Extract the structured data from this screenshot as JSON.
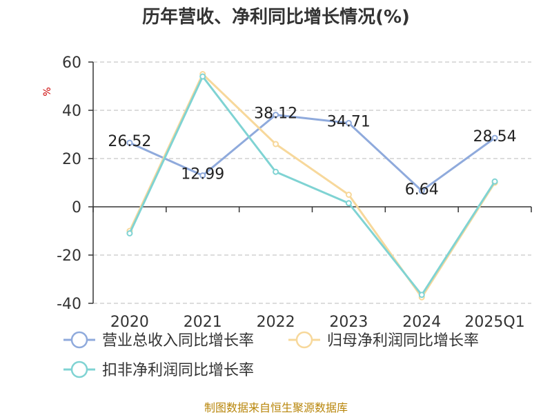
{
  "title": "历年营收、净利同比增长情况(%)",
  "footer": "制图数据来自恒生聚源数据库",
  "chart_data": {
    "type": "line",
    "title": "历年营收、净利同比增长情况(%)",
    "ylabel": "%",
    "xlabel": "",
    "ylim": [
      -40,
      60
    ],
    "yticks": [
      60,
      40,
      20,
      0,
      -20,
      -40
    ],
    "categories": [
      "2020",
      "2021",
      "2022",
      "2023",
      "2024",
      "2025Q1"
    ],
    "grid": true,
    "legend": "bottom-left",
    "series": [
      {
        "name": "营业总收入同比增长率",
        "color": "#8faadc",
        "values": [
          26.52,
          12.99,
          38.12,
          34.71,
          6.64,
          28.54
        ],
        "labels": [
          "26.52",
          "12.99",
          "38.12",
          "34.71",
          "6.64",
          "28.54"
        ]
      },
      {
        "name": "归母净利润同比增长率",
        "color": "#f7d89b",
        "values": [
          -10,
          55,
          26,
          5,
          -37.5,
          10
        ]
      },
      {
        "name": "扣非净利润同比增长率",
        "color": "#7fd3d3",
        "values": [
          -11,
          54,
          14.5,
          1.5,
          -36.5,
          10.5
        ]
      }
    ]
  }
}
